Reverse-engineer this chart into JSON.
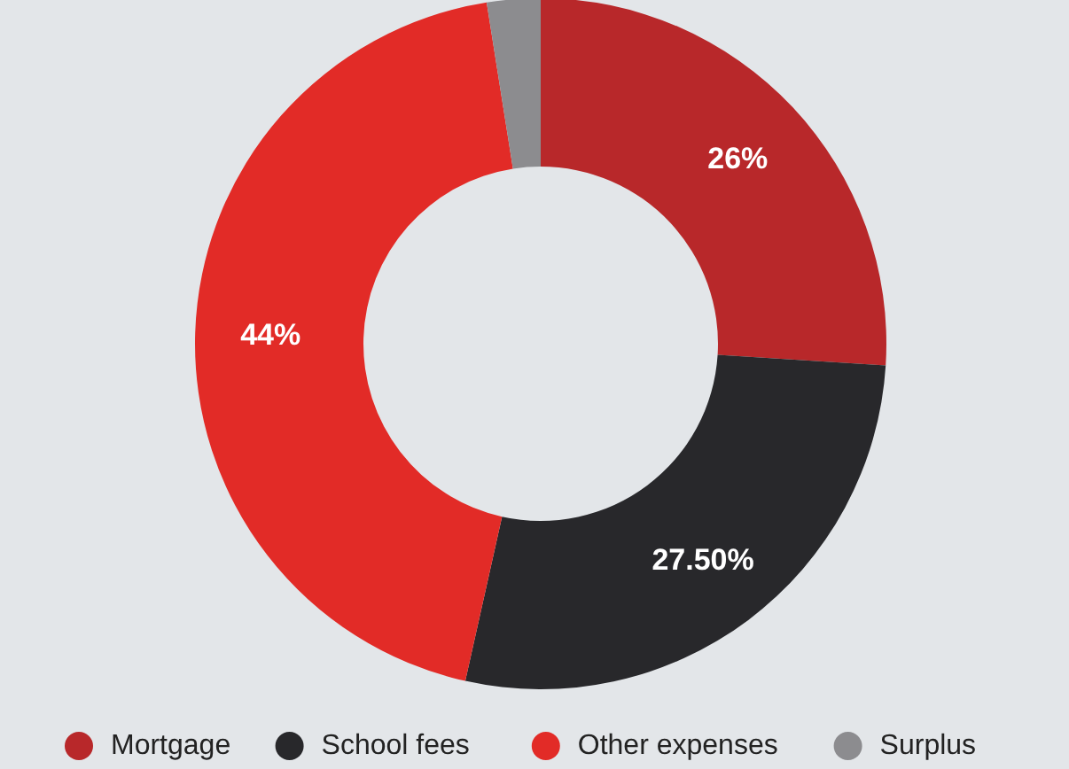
{
  "chart_data": {
    "type": "donut",
    "categories": [
      "Mortgage",
      "School fees",
      "Other expenses",
      "Surplus"
    ],
    "values": [
      26,
      27.5,
      44,
      2.5
    ],
    "colors": [
      "#b8282a",
      "#28282b",
      "#e22b27",
      "#8c8c8f"
    ],
    "value_labels": [
      "26%",
      "27.50%",
      "44%",
      null
    ],
    "legend": "bottom"
  }
}
